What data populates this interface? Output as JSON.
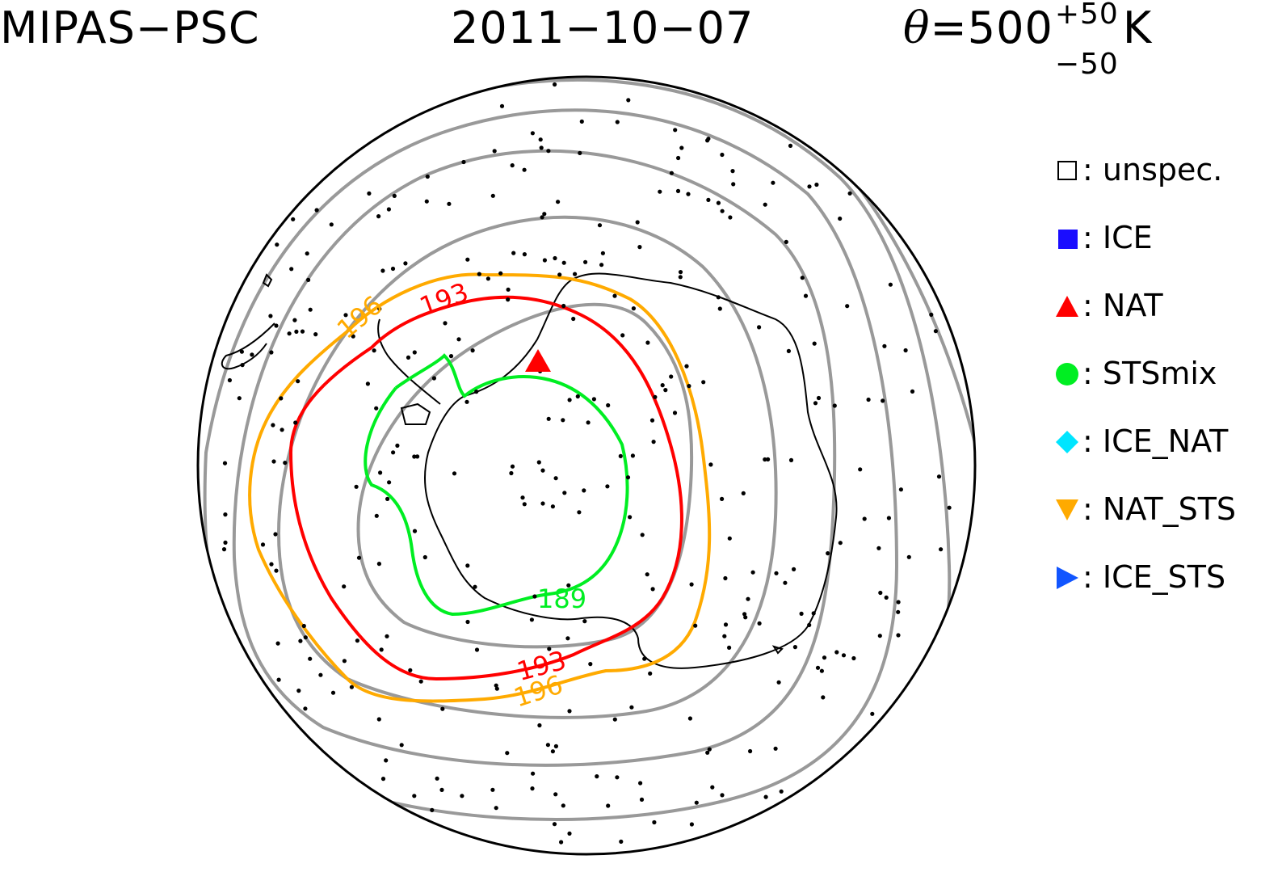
{
  "title": {
    "left": "MIPAS−PSC",
    "date": "2011−10−07",
    "theta_symbol": "θ",
    "theta_eq": "=500",
    "theta_sup": "+50",
    "theta_sub": "−50",
    "theta_unit": "K"
  },
  "legend": [
    {
      "symbol": ":",
      "label": "unspec.",
      "marker": "open-square",
      "color": "#000000"
    },
    {
      "symbol": ":",
      "label": "ICE",
      "marker": "filled-square",
      "color": "#1a0dff"
    },
    {
      "symbol": ":",
      "label": "NAT",
      "marker": "triangle-up",
      "color": "#ff0000"
    },
    {
      "symbol": ":",
      "label": "STSmix",
      "marker": "circle",
      "color": "#00ee22"
    },
    {
      "symbol": ":",
      "label": "ICE_NAT",
      "marker": "diamond",
      "color": "#00e5ff"
    },
    {
      "symbol": ":",
      "label": "NAT_STS",
      "marker": "triangle-down",
      "color": "#ffaa00"
    },
    {
      "symbol": ":",
      "label": "ICE_STS",
      "marker": "triangle-right",
      "color": "#1155ff"
    }
  ],
  "contours": {
    "c189": {
      "label": "189",
      "color": "#00ee22"
    },
    "c193": {
      "label": "193",
      "color": "#ff0000"
    },
    "c196": {
      "label": "196",
      "color": "#ffaa00"
    },
    "gray_color": "#999999"
  },
  "observations": {
    "nat_detections": 1
  }
}
